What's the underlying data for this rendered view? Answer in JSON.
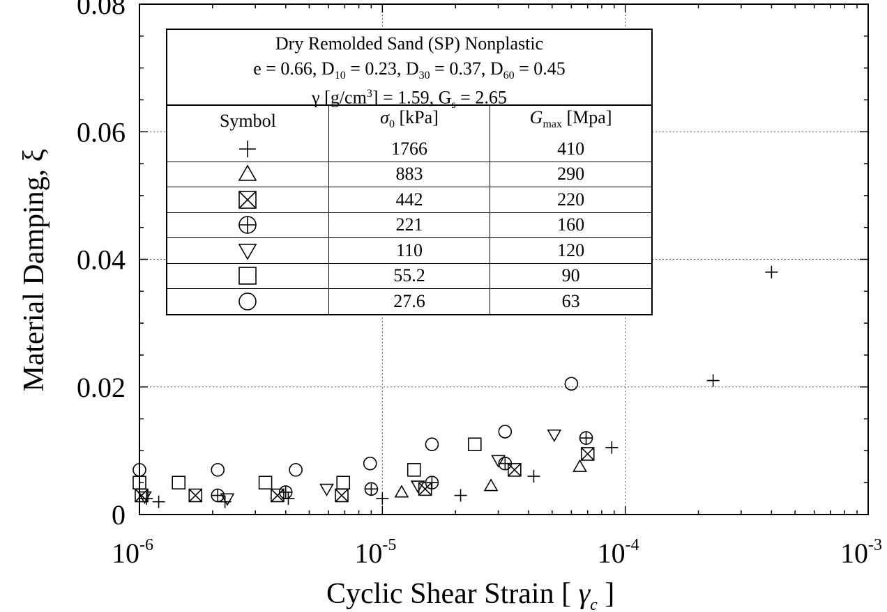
{
  "chart_data": {
    "type": "scatter",
    "xscale": "log",
    "xlim": [
      1e-06,
      0.001
    ],
    "ylim": [
      0,
      0.08
    ],
    "x_ticks": [
      {
        "base": "10",
        "exp": "-6"
      },
      {
        "base": "10",
        "exp": "-5"
      },
      {
        "base": "10",
        "exp": "-4"
      },
      {
        "base": "10",
        "exp": "-3"
      }
    ],
    "y_ticks": [
      "0",
      "0.02",
      "0.04",
      "0.06",
      "0.08"
    ],
    "y_tick_values": [
      0,
      0.02,
      0.04,
      0.06,
      0.08
    ],
    "xlabel": "Cyclic Shear Strain  [  γc  ]",
    "ylabel": "Material Damping, ξ",
    "grid": "dotted at decades and 0.02 steps",
    "legend": {
      "placement": "top-left",
      "title_lines": [
        "Dry Remolded Sand (SP) Nonplastic",
        "e = 0.66, D10 = 0.23, D30 = 0.37, D60 = 0.45",
        "γ [g/cm3] = 1.59, Gs = 2.65"
      ],
      "columns": [
        "Symbol",
        "σ0 [kPa]",
        "Gmax [Mpa]"
      ],
      "rows": [
        {
          "symbol": "plus",
          "sigma": "1766",
          "gmax": "410"
        },
        {
          "symbol": "triangle-up",
          "sigma": "883",
          "gmax": "290"
        },
        {
          "symbol": "square-x",
          "sigma": "442",
          "gmax": "220"
        },
        {
          "symbol": "circle-plus",
          "sigma": "221",
          "gmax": "160"
        },
        {
          "symbol": "triangle-down",
          "sigma": "110",
          "gmax": "120"
        },
        {
          "symbol": "square",
          "sigma": "55.2",
          "gmax": "90"
        },
        {
          "symbol": "circle",
          "sigma": "27.6",
          "gmax": "63"
        }
      ]
    },
    "series": [
      {
        "name": "1766",
        "marker": "plus",
        "points": [
          [
            1.07e-06,
            0.0025
          ],
          [
            1.2e-06,
            0.002
          ],
          [
            2.25e-06,
            0.002
          ],
          [
            4.1e-06,
            0.0025
          ],
          [
            1e-05,
            0.0025
          ],
          [
            2.1e-05,
            0.003
          ],
          [
            4.2e-05,
            0.006
          ],
          [
            8.8e-05,
            0.0105
          ],
          [
            0.00023,
            0.021
          ],
          [
            0.0004,
            0.038
          ]
        ]
      },
      {
        "name": "883",
        "marker": "triangle-up",
        "points": [
          [
            1.2e-05,
            0.0035
          ],
          [
            2.8e-05,
            0.0045
          ],
          [
            6.5e-05,
            0.0075
          ]
        ]
      },
      {
        "name": "442",
        "marker": "square-x",
        "points": [
          [
            1.02e-06,
            0.003
          ],
          [
            1.7e-06,
            0.003
          ],
          [
            3.7e-06,
            0.003
          ],
          [
            6.8e-06,
            0.003
          ],
          [
            1.5e-05,
            0.004
          ],
          [
            3.5e-05,
            0.007
          ],
          [
            7e-05,
            0.0095
          ]
        ]
      },
      {
        "name": "221",
        "marker": "circle-plus",
        "points": [
          [
            2.1e-06,
            0.003
          ],
          [
            4e-06,
            0.0035
          ],
          [
            9e-06,
            0.004
          ],
          [
            1.6e-05,
            0.005
          ],
          [
            3.2e-05,
            0.008
          ],
          [
            6.9e-05,
            0.012
          ]
        ]
      },
      {
        "name": "110",
        "marker": "triangle-down",
        "points": [
          [
            1.05e-06,
            0.0028
          ],
          [
            2.3e-06,
            0.0025
          ],
          [
            5.9e-06,
            0.004
          ],
          [
            1.4e-05,
            0.0045
          ],
          [
            3e-05,
            0.0085
          ],
          [
            5.1e-05,
            0.0125
          ]
        ]
      },
      {
        "name": "55.2",
        "marker": "square",
        "points": [
          [
            1e-06,
            0.005
          ],
          [
            1.45e-06,
            0.005
          ],
          [
            3.3e-06,
            0.005
          ],
          [
            6.9e-06,
            0.005
          ],
          [
            1.35e-05,
            0.007
          ],
          [
            2.4e-05,
            0.011
          ]
        ]
      },
      {
        "name": "27.6",
        "marker": "circle",
        "points": [
          [
            1e-06,
            0.007
          ],
          [
            2.1e-06,
            0.007
          ],
          [
            4.4e-06,
            0.007
          ],
          [
            8.9e-06,
            0.008
          ],
          [
            1.6e-05,
            0.011
          ],
          [
            3.2e-05,
            0.013
          ],
          [
            6e-05,
            0.0205
          ]
        ]
      }
    ]
  }
}
